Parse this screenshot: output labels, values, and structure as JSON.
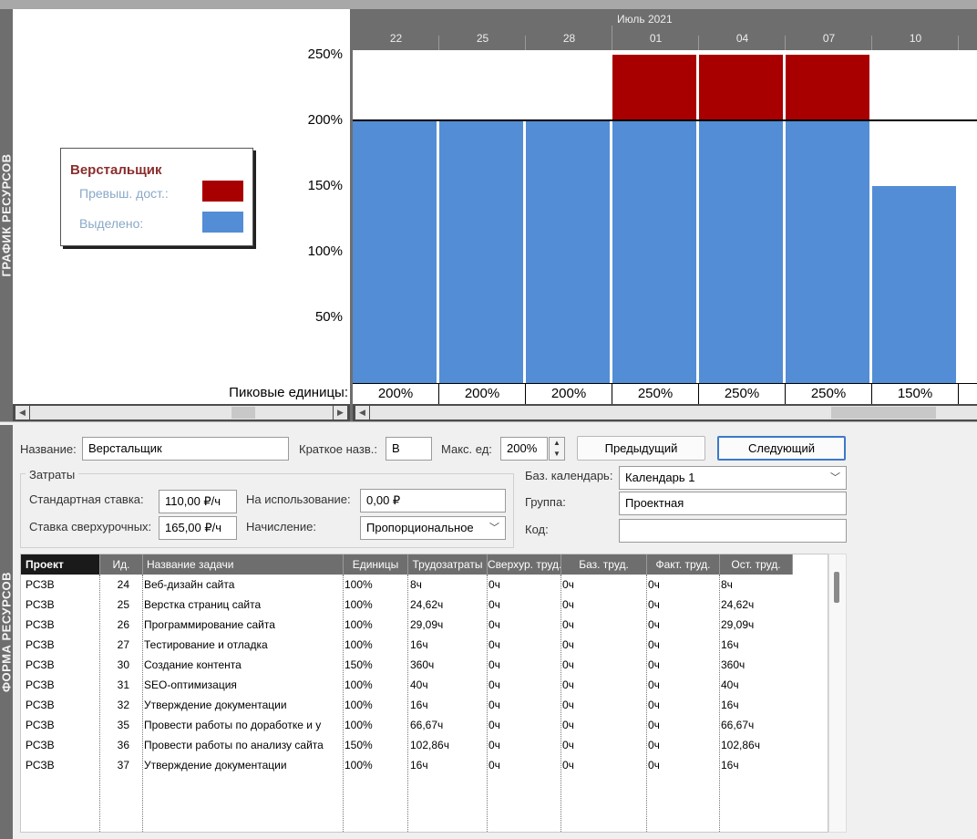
{
  "side_labels": {
    "top": "ГРАФИК РЕСУРСОВ",
    "bottom": "ФОРМА РЕСУРСОВ"
  },
  "colors": {
    "over": "#a80000",
    "allocated": "#538dd5"
  },
  "legend": {
    "title": "Верстальщик",
    "over_label": "Превыш. дост.:",
    "allocated_label": "Выделено:"
  },
  "timeline": {
    "month": "Июль 2021",
    "ticks": [
      "22",
      "25",
      "28",
      "01",
      "04",
      "07",
      "10"
    ]
  },
  "chart_data": {
    "type": "bar",
    "categories": [
      "22",
      "25",
      "28",
      "01",
      "04",
      "07",
      "10"
    ],
    "series": [
      {
        "name": "Выделено:",
        "values": [
          200,
          200,
          200,
          200,
          200,
          200,
          150
        ]
      },
      {
        "name": "Превыш. дост.:",
        "values": [
          0,
          0,
          0,
          50,
          50,
          50,
          0
        ]
      }
    ],
    "max_units": 200,
    "ylim": [
      0,
      250
    ],
    "yticks": [
      "250%",
      "200%",
      "150%",
      "100%",
      "50%"
    ],
    "peak_label": "Пиковые единицы:",
    "peak_values": [
      "200%",
      "200%",
      "200%",
      "250%",
      "250%",
      "250%",
      "150%"
    ]
  },
  "form": {
    "name_label": "Название:",
    "name_value": "Верстальщик",
    "short_label": "Краткое назв.:",
    "short_value": "В",
    "max_label": "Макс. ед:",
    "max_value": "200%",
    "prev_button": "Предыдущий",
    "next_button": "Следующий",
    "costs_title": "Затраты",
    "std_rate_label": "Стандартная ставка:",
    "std_rate_value": "110,00 ₽/ч",
    "ovt_rate_label": "Ставка сверхурочных:",
    "ovt_rate_value": "165,00 ₽/ч",
    "per_use_label": "На использование:",
    "per_use_value": "0,00 ₽",
    "accrue_label": "Начисление:",
    "accrue_value": "Пропорциональное",
    "calendar_label": "Баз. календарь:",
    "calendar_value": "Календарь 1",
    "group_label": "Группа:",
    "group_value": "Проектная",
    "code_label": "Код:",
    "code_value": ""
  },
  "table": {
    "headers": [
      "Проект",
      "Ид.",
      "Название задачи",
      "Единицы",
      "Трудозатраты",
      "Сверхур. труд.",
      "Баз. труд.",
      "Факт. труд.",
      "Ост. труд."
    ],
    "rows": [
      [
        "РСЗВ",
        "24",
        "Веб-дизайн сайта",
        "100%",
        "8ч",
        "0ч",
        "0ч",
        "0ч",
        "8ч"
      ],
      [
        "РСЗВ",
        "25",
        "Верстка страниц сайта",
        "100%",
        "24,62ч",
        "0ч",
        "0ч",
        "0ч",
        "24,62ч"
      ],
      [
        "РСЗВ",
        "26",
        "Программирование сайта",
        "100%",
        "29,09ч",
        "0ч",
        "0ч",
        "0ч",
        "29,09ч"
      ],
      [
        "РСЗВ",
        "27",
        "Тестирование и отладка",
        "100%",
        "16ч",
        "0ч",
        "0ч",
        "0ч",
        "16ч"
      ],
      [
        "РСЗВ",
        "30",
        "Создание контента",
        "150%",
        "360ч",
        "0ч",
        "0ч",
        "0ч",
        "360ч"
      ],
      [
        "РСЗВ",
        "31",
        "SEO-оптимизация",
        "100%",
        "40ч",
        "0ч",
        "0ч",
        "0ч",
        "40ч"
      ],
      [
        "РСЗВ",
        "32",
        "Утверждение документации",
        "100%",
        "16ч",
        "0ч",
        "0ч",
        "0ч",
        "16ч"
      ],
      [
        "РСЗВ",
        "35",
        "Провести работы по доработке и у",
        "100%",
        "66,67ч",
        "0ч",
        "0ч",
        "0ч",
        "66,67ч"
      ],
      [
        "РСЗВ",
        "36",
        "Провести работы по анализу сайта",
        "150%",
        "102,86ч",
        "0ч",
        "0ч",
        "0ч",
        "102,86ч"
      ],
      [
        "РСЗВ",
        "37",
        "Утверждение документации",
        "100%",
        "16ч",
        "0ч",
        "0ч",
        "0ч",
        "16ч"
      ]
    ]
  }
}
